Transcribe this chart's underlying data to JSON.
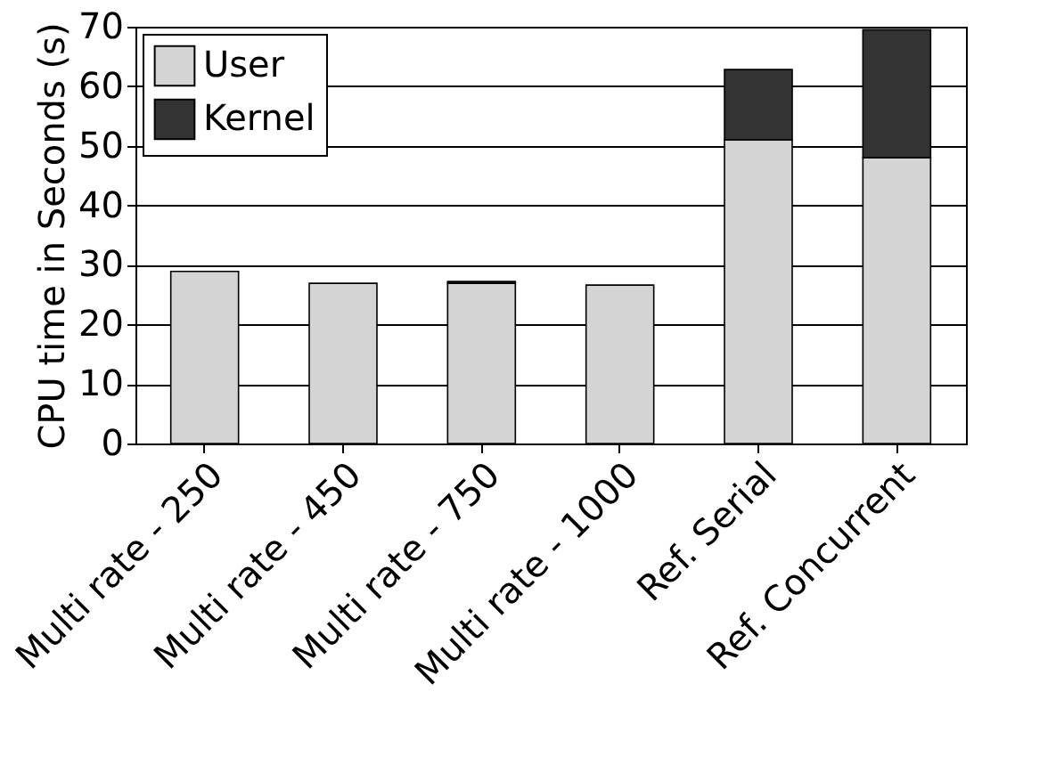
{
  "chart_data": {
    "type": "bar",
    "stacked": true,
    "ylabel": "CPU time in Seconds (s)",
    "categories": [
      "Multi rate - 250",
      "Multi rate - 450",
      "Multi rate - 750",
      "Multi rate - 1000",
      "Ref. Serial",
      "Ref. Concurrent"
    ],
    "series": [
      {
        "name": "User",
        "color": "#d4d4d4",
        "values": [
          28.9,
          26.9,
          26.9,
          26.6,
          51.0,
          48.0
        ]
      },
      {
        "name": "Kernel",
        "color": "#333333",
        "values": [
          null,
          null,
          0.3,
          null,
          11.8,
          21.5
        ]
      }
    ],
    "ylim": [
      0,
      70
    ],
    "yticks": [
      0,
      10,
      20,
      30,
      40,
      50,
      60,
      70
    ],
    "grid": "y",
    "legend": "top left"
  }
}
